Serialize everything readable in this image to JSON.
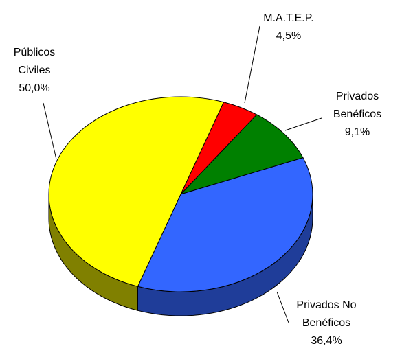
{
  "chart_data": {
    "type": "pie3d",
    "categories": [
      "M.A.T.E.P.",
      "Privados Benéficos",
      "Privados No Benéficos",
      "Públicos Civiles"
    ],
    "values": [
      4.5,
      9.1,
      36.4,
      50.0
    ],
    "value_labels": [
      "4,5%",
      "9,1%",
      "36,4%",
      "50,0%"
    ],
    "colors": [
      "#ff0000",
      "#008000",
      "#3366ff",
      "#ffff00"
    ],
    "side_colors": [
      "#800000",
      "#004000",
      "#1f3d99",
      "#808000"
    ]
  }
}
